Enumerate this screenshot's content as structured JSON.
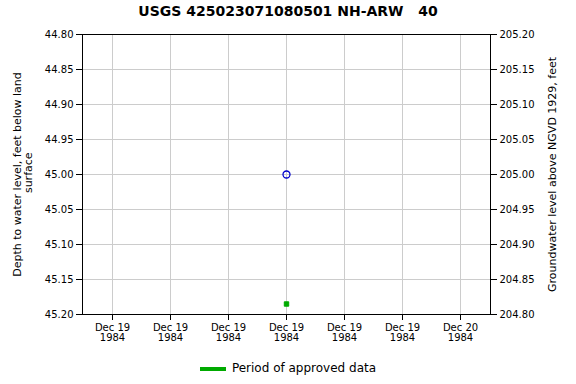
{
  "chart_data": {
    "type": "scatter",
    "title": "USGS 425023071080501 NH-ARW   40",
    "ylabel": "Depth to water level, feet below land\n surface",
    "y2label": "Groundwater level above NGVD 1929, feet",
    "categories": [
      "Dec 19\n1984",
      "Dec 19\n1984",
      "Dec 19\n1984",
      "Dec 19\n1984",
      "Dec 19\n1984",
      "Dec 19\n1984",
      "Dec 20\n1984"
    ],
    "series": [
      {
        "color": "#0000cc",
        "marker": "circle",
        "values": [
          null,
          null,
          null,
          45.0,
          null,
          null,
          null
        ]
      },
      {
        "name": "Period of approved data",
        "color": "#00aa00",
        "marker": "square",
        "values": [
          null,
          null,
          null,
          45.185,
          null,
          null,
          null
        ]
      }
    ],
    "ylim": [
      45.2,
      44.8
    ],
    "yticks": [
      {
        "value": 44.8,
        "label": "44.80"
      },
      44.85,
      {
        "value": 44.9,
        "label": "44.90"
      },
      44.95,
      {
        "value": 45.0,
        "label": "45.00"
      },
      45.05,
      {
        "value": 45.1,
        "label": "45.10"
      },
      45.15,
      {
        "value": 45.2,
        "label": "45.20"
      }
    ],
    "y2lim": [
      204.8,
      205.2
    ],
    "y2ticks": [
      {
        "value": 205.2,
        "label": "205.20"
      },
      205.15,
      {
        "value": 205.1,
        "label": "205.10"
      },
      205.05,
      {
        "value": 205.0,
        "label": "205.00"
      },
      204.95,
      {
        "value": 204.9,
        "label": "204.90"
      },
      204.85,
      {
        "value": 204.8,
        "label": "204.80"
      }
    ],
    "grid": true,
    "legend": "bottom"
  }
}
